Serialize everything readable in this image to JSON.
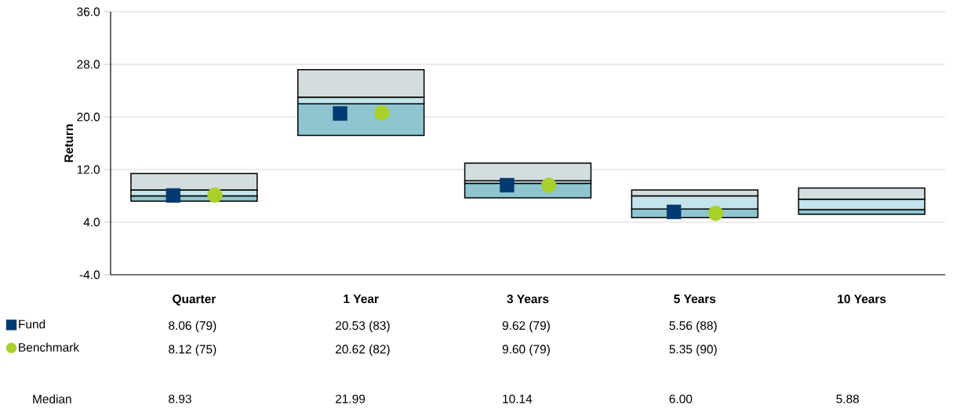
{
  "chart_data": {
    "type": "bar",
    "stacked": true,
    "ylabel": "Return",
    "categories": [
      "Quarter",
      "1 Year",
      "3 Years",
      "5 Years",
      "10 Years"
    ],
    "ylim": [
      -4,
      36
    ],
    "yticks": [
      {
        "value": -4,
        "label": "-4.0"
      },
      {
        "value": 4,
        "label": "4.0"
      },
      {
        "value": 12,
        "label": "12.0"
      },
      {
        "value": 20,
        "label": "20.0"
      },
      {
        "value": 28,
        "label": "28.0"
      },
      {
        "value": 36,
        "label": "36.0"
      }
    ],
    "grid": "y",
    "legend": "bottom left",
    "series": [
      {
        "color": "#8ec5d1",
        "base": [
          7.2,
          17.2,
          7.7,
          4.7,
          5.2
        ],
        "values": [
          0.8,
          4.8,
          2.2,
          1.3,
          0.7
        ]
      },
      {
        "color": "#c4e3ea",
        "values": [
          0.9,
          1.0,
          0.4,
          2.0,
          1.6
        ]
      },
      {
        "color": "#d3dde0",
        "values": [
          2.5,
          4.2,
          2.7,
          0.9,
          1.7
        ]
      },
      {
        "type": "scatter",
        "name": "Fund",
        "color": "#003a70",
        "marker": "square",
        "values": [
          8.06,
          20.53,
          9.62,
          5.56,
          null
        ],
        "value_labels": [
          "8.06 (79)",
          "20.53 (83)",
          "9.62 (79)",
          "5.56 (88)",
          null
        ]
      },
      {
        "type": "scatter",
        "name": "Benchmark",
        "color": "#a8cf2a",
        "marker": "circle",
        "values": [
          8.12,
          20.62,
          9.6,
          5.35,
          null
        ],
        "value_labels": [
          "8.12 (75)",
          "20.62 (82)",
          "9.60 (79)",
          "5.35 (90)",
          null
        ]
      }
    ],
    "annotations": [
      "Median",
      "8.93",
      "21.99",
      "10.14",
      "6.00",
      "5.88"
    ]
  }
}
